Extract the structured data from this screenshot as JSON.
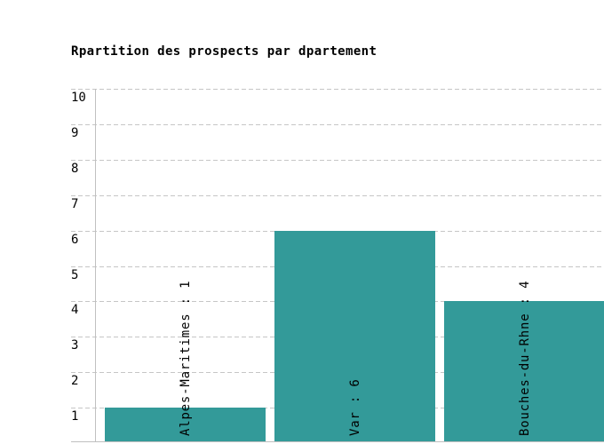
{
  "chart_data": {
    "type": "bar",
    "title": "Rpartition des prospects par dpartement",
    "categories": [
      "Alpes-Maritimes",
      "Var",
      "Bouches-du-Rhne"
    ],
    "values": [
      1,
      6,
      4
    ],
    "bar_labels": [
      "Alpes-Maritimes : 1",
      "Var : 6",
      "Bouches-du-Rhne : 4"
    ],
    "xlabel": "",
    "ylabel": "",
    "ylim": [
      0,
      10
    ],
    "y_ticks": [
      1,
      2,
      3,
      4,
      5,
      6,
      7,
      8,
      9,
      10
    ],
    "grid": "horizontal-dashed",
    "legend": "none",
    "bar_color": "#339A99",
    "grid_color": "#C6C6C6",
    "axis_color": "#C0C0C0",
    "text_color": "#000000",
    "background": "#FFFFFF"
  }
}
